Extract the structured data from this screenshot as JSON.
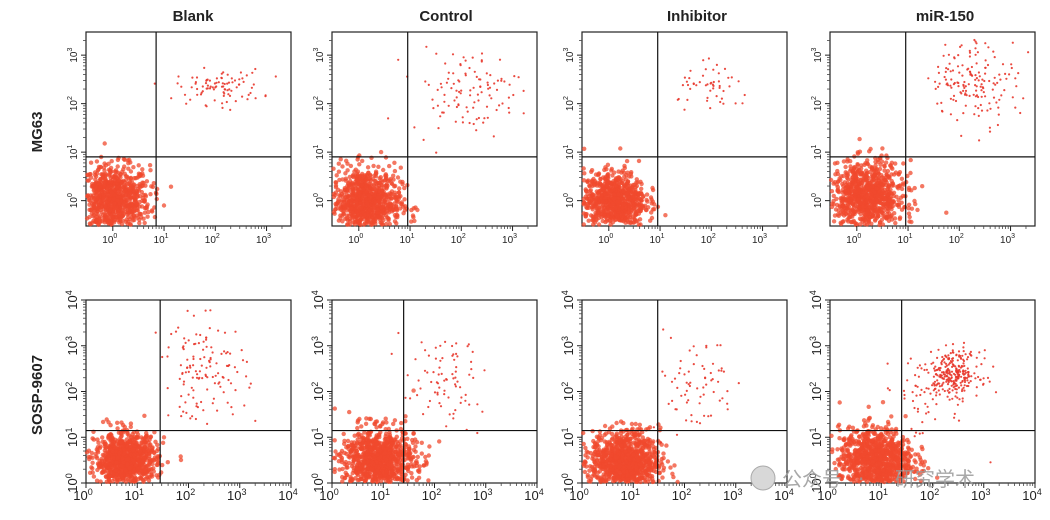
{
  "chart_data": {
    "type": "scatter",
    "figure": "Flow cytometry apoptosis quadrant plots",
    "columns": [
      "Blank",
      "Control",
      "Inhibitor",
      "miR-150"
    ],
    "rows": [
      "MG63",
      "SOSP-9607"
    ],
    "axis": {
      "scale": "log",
      "rows": [
        {
          "range": [
            0.3,
            3000
          ],
          "tick_labels": [
            "10",
            "10",
            "10",
            "10"
          ],
          "tick_exponents": [
            "0",
            "1",
            "2",
            "3"
          ]
        },
        {
          "range": [
            1,
            10000
          ],
          "tick_labels": [
            "10",
            "10",
            "10",
            "10",
            "10"
          ],
          "tick_exponents": [
            "0",
            "1",
            "2",
            "3",
            "4"
          ]
        }
      ],
      "gate": {
        "x": 8,
        "y": 8
      }
    },
    "marker_color": "#e8372c",
    "dense_color": "#f04a2e",
    "panels": [
      {
        "row": "MG63",
        "column": "Blank",
        "gate": [
          7,
          8
        ],
        "clusters": [
          {
            "cx": 1.0,
            "cy": 1.0,
            "sx": 0.3,
            "sy": 0.3,
            "n": 900
          },
          {
            "cx": 120,
            "cy": 220,
            "sx": 0.35,
            "sy": 0.15,
            "n": 90
          }
        ]
      },
      {
        "row": "MG63",
        "column": "Control",
        "gate": [
          9,
          8
        ],
        "clusters": [
          {
            "cx": 1.4,
            "cy": 0.9,
            "sx": 0.28,
            "sy": 0.3,
            "n": 900
          },
          {
            "cx": 120,
            "cy": 180,
            "sx": 0.45,
            "sy": 0.35,
            "n": 110
          }
        ]
      },
      {
        "row": "MG63",
        "column": "Inhibitor",
        "gate": [
          9,
          8
        ],
        "clusters": [
          {
            "cx": 1.3,
            "cy": 1.0,
            "sx": 0.25,
            "sy": 0.25,
            "n": 800
          },
          {
            "cx": 120,
            "cy": 200,
            "sx": 0.3,
            "sy": 0.2,
            "n": 50
          }
        ]
      },
      {
        "row": "MG63",
        "column": "miR-150",
        "gate": [
          9,
          8
        ],
        "clusters": [
          {
            "cx": 1.6,
            "cy": 1.2,
            "sx": 0.3,
            "sy": 0.3,
            "n": 900
          },
          {
            "cx": 200,
            "cy": 300,
            "sx": 0.35,
            "sy": 0.35,
            "n": 160
          }
        ]
      },
      {
        "row": "SOSP-9607",
        "column": "Blank",
        "gate": [
          28,
          14
        ],
        "clusters": [
          {
            "cx": 6,
            "cy": 3,
            "sx": 0.25,
            "sy": 0.25,
            "n": 1000
          },
          {
            "cx": 200,
            "cy": 300,
            "sx": 0.35,
            "sy": 0.45,
            "n": 130
          }
        ]
      },
      {
        "row": "SOSP-9607",
        "column": "Control",
        "gate": [
          25,
          14
        ],
        "clusters": [
          {
            "cx": 8,
            "cy": 3,
            "sx": 0.3,
            "sy": 0.3,
            "n": 1000
          },
          {
            "cx": 150,
            "cy": 150,
            "sx": 0.35,
            "sy": 0.4,
            "n": 80
          }
        ]
      },
      {
        "row": "SOSP-9607",
        "column": "Inhibitor",
        "gate": [
          30,
          14
        ],
        "clusters": [
          {
            "cx": 7,
            "cy": 3,
            "sx": 0.28,
            "sy": 0.28,
            "n": 1000
          },
          {
            "cx": 150,
            "cy": 150,
            "sx": 0.35,
            "sy": 0.45,
            "n": 70
          }
        ]
      },
      {
        "row": "SOSP-9607",
        "column": "miR-150",
        "gate": [
          25,
          14
        ],
        "clusters": [
          {
            "cx": 8,
            "cy": 3,
            "sx": 0.3,
            "sy": 0.3,
            "n": 1000
          },
          {
            "cx": 250,
            "cy": 250,
            "sx": 0.22,
            "sy": 0.2,
            "n": 260
          },
          {
            "cx": 80,
            "cy": 80,
            "sx": 0.4,
            "sy": 0.4,
            "n": 60
          }
        ]
      }
    ]
  },
  "watermark": {
    "left": "公众号",
    "right": "研究学术"
  }
}
